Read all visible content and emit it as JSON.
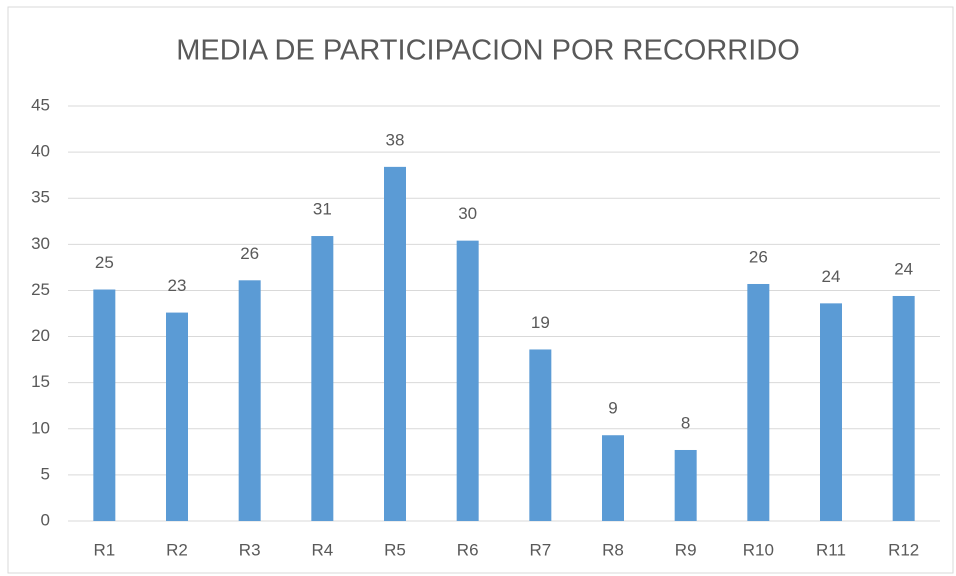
{
  "chart_data": {
    "type": "bar",
    "title": "MEDIA DE  PARTICIPACION POR RECORRIDO",
    "categories": [
      "R1",
      "R2",
      "R3",
      "R4",
      "R5",
      "R6",
      "R7",
      "R8",
      "R9",
      "R10",
      "R11",
      "R12"
    ],
    "values": [
      25.1,
      22.6,
      26.1,
      30.9,
      38.4,
      30.4,
      18.6,
      9.3,
      7.7,
      25.7,
      23.6,
      24.4
    ],
    "value_labels": [
      "25",
      "23",
      "26",
      "31",
      "38",
      "30",
      "19",
      "9",
      "8",
      "26",
      "24",
      "24"
    ],
    "color": "#5b9bd5",
    "ylim": [
      0,
      45
    ],
    "yticks": [
      0,
      5,
      10,
      15,
      20,
      25,
      30,
      35,
      40,
      45
    ],
    "grid": true
  }
}
